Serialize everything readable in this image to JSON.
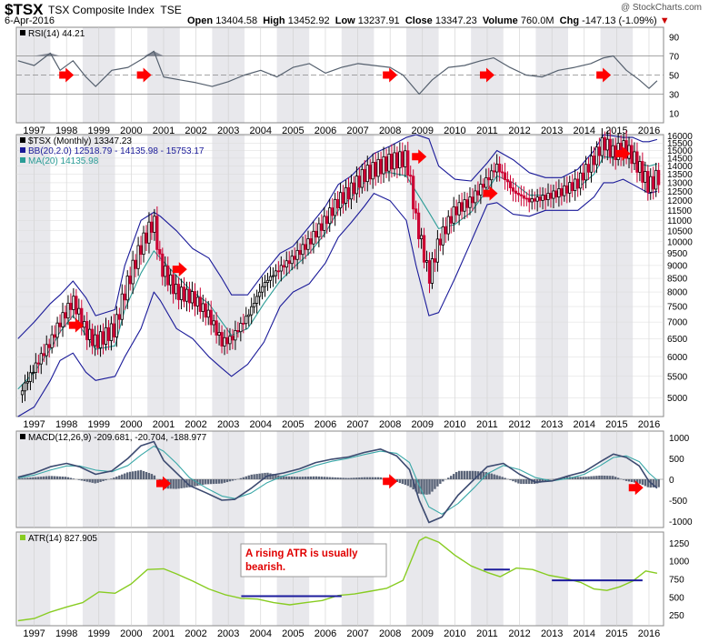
{
  "header": {
    "symbol": "$TSX",
    "name": "TSX Composite Index",
    "exchange": "TSE",
    "date": "6-Apr-2016",
    "watermark": "@ StockCharts.com",
    "open_label": "Open",
    "open": "13404.58",
    "high_label": "High",
    "high": "13452.92",
    "low_label": "Low",
    "low": "13237.91",
    "close_label": "Close",
    "close": "13347.23",
    "volume_label": "Volume",
    "volume": "760.0M",
    "chg_label": "Chg",
    "chg": "-147.13 (-1.09%)"
  },
  "colors": {
    "up": "#000000",
    "down": "#cc0033",
    "bb": "#1a1a99",
    "ma": "#2a9c96",
    "macd": "#3c4a70",
    "signal": "#3aa8a8",
    "atr": "#88cc22",
    "hline": "#1c1c9c",
    "arrow": "#ff0000",
    "band": "#e8e8ec",
    "rsi": "#55606e",
    "grid": "#c8c8c8"
  },
  "x_years": [
    "1997",
    "1998",
    "1999",
    "2000",
    "2001",
    "2002",
    "2003",
    "2004",
    "2005",
    "2006",
    "2007",
    "2008",
    "2009",
    "2010",
    "2011",
    "2012",
    "2013",
    "2014",
    "2015",
    "2016"
  ],
  "chart_data": [
    {
      "type": "line",
      "panel": "rsi",
      "legend": [
        "RSI(14) 44.21"
      ],
      "yticks": [
        10,
        30,
        50,
        70,
        90
      ],
      "ylim": [
        0,
        100
      ],
      "ref_lines": [
        70,
        50,
        30
      ],
      "x": [
        1996.5,
        1997.0,
        1997.5,
        1997.8,
        1998.2,
        1998.6,
        1998.9,
        1999.4,
        1999.9,
        2000.4,
        2000.7,
        2001.0,
        2001.5,
        2002.0,
        2002.5,
        2003.0,
        2003.5,
        2004.0,
        2004.5,
        2005.0,
        2005.5,
        2006.0,
        2006.5,
        2007.0,
        2007.5,
        2008.0,
        2008.4,
        2008.9,
        2009.3,
        2009.8,
        2010.3,
        2010.8,
        2011.2,
        2011.7,
        2012.2,
        2012.7,
        2013.2,
        2013.7,
        2014.2,
        2014.6,
        2014.9,
        2015.3,
        2015.7,
        2016.0,
        2016.25
      ],
      "values": [
        65,
        60,
        73,
        55,
        65,
        48,
        38,
        55,
        58,
        68,
        75,
        48,
        45,
        42,
        38,
        43,
        50,
        55,
        48,
        58,
        62,
        52,
        58,
        62,
        60,
        58,
        50,
        30,
        45,
        58,
        60,
        65,
        68,
        58,
        50,
        48,
        55,
        58,
        62,
        68,
        70,
        55,
        45,
        36,
        44
      ]
    },
    {
      "type": "candlestick",
      "panel": "price",
      "legend": [
        "$TSX (Monthly) 13347.23",
        "BB(20,2.0) 12518.79 - 14135.98 - 15753.17",
        "MA(20) 14135.98"
      ],
      "yticks": [
        5000,
        5500,
        6000,
        6500,
        7000,
        7500,
        8000,
        8500,
        9000,
        9500,
        10000,
        10500,
        11000,
        11500,
        12000,
        12500,
        13000,
        13500,
        14000,
        14500,
        15000,
        15500,
        16000
      ],
      "ylim": [
        4600,
        16100
      ],
      "x": [
        1996.5,
        1997.0,
        1997.5,
        1997.8,
        1998.2,
        1998.6,
        1998.9,
        1999.5,
        1999.8,
        2000.3,
        2000.7,
        2000.9,
        2001.4,
        2001.9,
        2002.4,
        2002.8,
        2003.1,
        2003.6,
        2004.1,
        2004.6,
        2005.0,
        2005.5,
        2006.0,
        2006.4,
        2006.8,
        2007.2,
        2007.5,
        2008.0,
        2008.5,
        2008.8,
        2009.2,
        2009.5,
        2010.0,
        2010.5,
        2011.0,
        2011.3,
        2011.8,
        2012.3,
        2012.8,
        2013.3,
        2013.8,
        2014.3,
        2014.6,
        2014.9,
        2015.2,
        2015.5,
        2015.8,
        2016.0,
        2016.25
      ],
      "close": [
        5000,
        5700,
        6400,
        7000,
        7700,
        6700,
        6400,
        6800,
        8000,
        9800,
        11000,
        9000,
        8000,
        7800,
        7200,
        6400,
        6500,
        7200,
        8300,
        8900,
        9300,
        10000,
        11000,
        12000,
        12600,
        13500,
        13800,
        14300,
        14500,
        11000,
        8500,
        10000,
        11500,
        12000,
        13200,
        14000,
        12500,
        12000,
        12200,
        12500,
        13000,
        14500,
        15600,
        14800,
        15200,
        14600,
        13500,
        12800,
        13347
      ],
      "bb_upper": [
        6500,
        7000,
        7600,
        7900,
        8400,
        7800,
        7200,
        7400,
        9000,
        11000,
        11400,
        11200,
        10500,
        9700,
        9300,
        8500,
        7900,
        7900,
        8700,
        9500,
        9800,
        10700,
        11700,
        12900,
        13400,
        14200,
        14800,
        15300,
        15900,
        16100,
        15800,
        14000,
        13200,
        13100,
        14200,
        15000,
        14400,
        13600,
        13300,
        13300,
        13800,
        15000,
        16100,
        16000,
        15900,
        15900,
        15600,
        15600,
        15753
      ],
      "bb_lower": [
        4600,
        4800,
        5400,
        5900,
        6100,
        5600,
        5400,
        5500,
        6000,
        6800,
        8000,
        7700,
        6800,
        6500,
        6000,
        5700,
        5500,
        5800,
        6400,
        7500,
        8000,
        8300,
        9100,
        10200,
        10900,
        11700,
        12400,
        12000,
        11000,
        9000,
        7200,
        7300,
        8500,
        10000,
        11800,
        11900,
        11300,
        11200,
        11500,
        11500,
        11500,
        12200,
        13000,
        13000,
        13200,
        12900,
        12600,
        12400,
        12519
      ],
      "ma": [
        5200,
        5600,
        6200,
        6700,
        7200,
        6600,
        6200,
        6300,
        7400,
        8700,
        9600,
        9300,
        8600,
        8000,
        7600,
        7000,
        6600,
        6800,
        7600,
        8400,
        8900,
        9500,
        10400,
        11500,
        12200,
        13000,
        13600,
        13600,
        13400,
        12500,
        11400,
        10600,
        10800,
        11400,
        12600,
        13400,
        13000,
        12300,
        12300,
        12400,
        12700,
        13500,
        14600,
        14500,
        14600,
        14400,
        14100,
        14000,
        14136
      ]
    },
    {
      "type": "line",
      "panel": "macd",
      "legend": [
        "MACD(12,26,9) -209.681, -20.704, -188.977"
      ],
      "yticks": [
        1000,
        500,
        0,
        -500,
        -1000
      ],
      "ylim": [
        -1150,
        1150
      ],
      "x": [
        1996.5,
        1997.0,
        1997.5,
        1998.0,
        1998.4,
        1998.9,
        1999.4,
        1999.9,
        2000.3,
        2000.7,
        2001.0,
        2001.4,
        2001.8,
        2002.3,
        2002.8,
        2003.2,
        2003.7,
        2004.2,
        2004.7,
        2005.2,
        2005.7,
        2006.2,
        2006.7,
        2007.2,
        2007.7,
        2008.2,
        2008.6,
        2008.9,
        2009.2,
        2009.6,
        2010.1,
        2010.6,
        2011.0,
        2011.5,
        2012.0,
        2012.5,
        2013.0,
        2013.5,
        2014.0,
        2014.5,
        2014.9,
        2015.3,
        2015.7,
        2016.0,
        2016.25
      ],
      "macd": [
        50,
        150,
        300,
        380,
        300,
        120,
        200,
        500,
        800,
        900,
        450,
        150,
        -150,
        -320,
        -500,
        -480,
        -220,
        80,
        150,
        250,
        400,
        480,
        530,
        640,
        720,
        560,
        230,
        -500,
        -1030,
        -900,
        -380,
        0,
        300,
        380,
        120,
        -70,
        -40,
        80,
        180,
        420,
        600,
        520,
        320,
        -50,
        -210
      ],
      "signal": [
        30,
        100,
        220,
        320,
        320,
        220,
        180,
        330,
        580,
        790,
        670,
        380,
        40,
        -200,
        -400,
        -460,
        -330,
        -80,
        80,
        190,
        330,
        430,
        500,
        590,
        670,
        620,
        400,
        -150,
        -660,
        -830,
        -580,
        -200,
        130,
        330,
        230,
        40,
        -40,
        20,
        120,
        330,
        520,
        560,
        420,
        150,
        -21
      ],
      "histogram": [
        20,
        50,
        80,
        60,
        -20,
        -100,
        20,
        170,
        220,
        110,
        -220,
        -230,
        -190,
        -120,
        -100,
        -20,
        110,
        160,
        70,
        60,
        70,
        50,
        30,
        50,
        50,
        -60,
        -170,
        -350,
        -370,
        -70,
        200,
        200,
        170,
        50,
        -110,
        -110,
        0,
        60,
        60,
        90,
        80,
        -40,
        -100,
        -200,
        -189
      ]
    },
    {
      "type": "line",
      "panel": "atr",
      "legend": [
        "ATR(14) 827.905"
      ],
      "yticks": [
        1250,
        1000,
        750,
        500,
        250
      ],
      "ylim": [
        100,
        1400
      ],
      "x": [
        1996.5,
        1997.0,
        1997.5,
        1998.0,
        1998.5,
        1999.0,
        1999.5,
        2000.0,
        2000.5,
        2001.0,
        2001.4,
        2001.9,
        2002.4,
        2002.9,
        2003.4,
        2003.9,
        2004.4,
        2004.9,
        2005.4,
        2005.9,
        2006.4,
        2006.9,
        2007.4,
        2007.9,
        2008.4,
        2008.9,
        2009.1,
        2009.5,
        2010.0,
        2010.5,
        2011.0,
        2011.4,
        2011.9,
        2012.4,
        2012.9,
        2013.4,
        2013.9,
        2014.3,
        2014.7,
        2015.1,
        2015.5,
        2015.9,
        2016.25
      ],
      "values": [
        170,
        200,
        290,
        360,
        420,
        570,
        550,
        680,
        880,
        890,
        820,
        720,
        610,
        530,
        480,
        470,
        420,
        390,
        420,
        450,
        520,
        540,
        580,
        620,
        730,
        1280,
        1330,
        1260,
        1080,
        930,
        840,
        780,
        900,
        880,
        800,
        760,
        700,
        610,
        590,
        640,
        720,
        860,
        828
      ]
    }
  ],
  "annotation": "A rising ATR is usually bearish.",
  "atr_reference_lines": [
    {
      "x": [
        2003.4,
        2006.5
      ],
      "y": 510
    },
    {
      "x": [
        2010.9,
        2011.7
      ],
      "y": 880
    },
    {
      "x": [
        2013.0,
        2015.8
      ],
      "y": 730
    }
  ],
  "arrows": {
    "rsi": [
      {
        "x": 1998.0,
        "y": 50
      },
      {
        "x": 2000.4,
        "y": 50
      },
      {
        "x": 2008.0,
        "y": 50
      },
      {
        "x": 2011.0,
        "y": 50
      },
      {
        "x": 2014.6,
        "y": 50
      }
    ],
    "price": [
      {
        "x": 1998.3,
        "y": 6900
      },
      {
        "x": 2001.5,
        "y": 8850
      },
      {
        "x": 2008.9,
        "y": 14600
      },
      {
        "x": 2011.1,
        "y": 12400
      },
      {
        "x": 2015.2,
        "y": 14800
      }
    ],
    "macd": [
      {
        "x": 2001.0,
        "y": -100
      },
      {
        "x": 2008.0,
        "y": -50
      },
      {
        "x": 2015.6,
        "y": -200
      }
    ]
  }
}
